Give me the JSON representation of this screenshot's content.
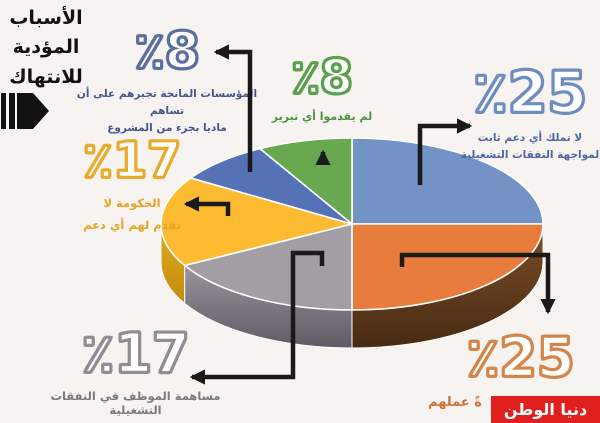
{
  "title": {
    "lines": [
      "الأسباب",
      "المؤدية",
      "للانتهاك"
    ]
  },
  "watermark": {
    "text": "دنيا الوطن",
    "bg": "#e01f1f"
  },
  "chart_data": {
    "type": "pie",
    "style": "3d",
    "title": "الأسباب المؤدية للانتهاك",
    "unit": "%",
    "start_angle_deg": 0,
    "direction": "clockwise",
    "slices": [
      {
        "label": "لا تملك أي دعم ثابت لمواجهة النفقات التشغيلية",
        "value": 25,
        "color": "#7392c5"
      },
      {
        "label": "ةً عملهم",
        "value": 25,
        "color": "#e77c3c",
        "side": [
          "#7b4d26",
          "#482b13"
        ]
      },
      {
        "label": "مساهمة الموظف في النفقات التشغيلية",
        "value": 17,
        "color": "#a39ea3",
        "side": [
          "#99949e",
          "#5f5a64"
        ]
      },
      {
        "label": "الحكومة لا تقدم لهم أي دعم",
        "value": 17,
        "color": "#fcbb31",
        "side": [
          "#e0a91e",
          "#c08d0d"
        ]
      },
      {
        "label": "المؤسسات المانحة تجبرهم على أن تساهم ماديا بجزء من المشروع",
        "value": 8,
        "color": "#5672b6"
      },
      {
        "label": "لم يقدموا أي تبرير",
        "value": 8,
        "color": "#68a850"
      }
    ]
  },
  "callouts": [
    {
      "num": "٪8",
      "lines": [
        "المؤسسات المانحة تجبرهم على أن تساهم",
        "ماديا بجزء من المشروع"
      ]
    },
    {
      "num": "٪8",
      "lines": [
        "لم يقدموا أي تبرير"
      ]
    },
    {
      "num": "٪25",
      "lines": [
        "لا تملك أي دعم ثابت",
        "لمواجهة النفقات التشغيلية"
      ]
    },
    {
      "num": "٪17",
      "lines": [
        "الحكومة لا",
        "تقدم لهم أي دعم"
      ]
    },
    {
      "num": "٪17",
      "lines": [
        "مساهمة الموظف في النفقات التشغيلية"
      ]
    },
    {
      "num": "٪25",
      "lines": [
        "ةً عملهم"
      ]
    }
  ]
}
